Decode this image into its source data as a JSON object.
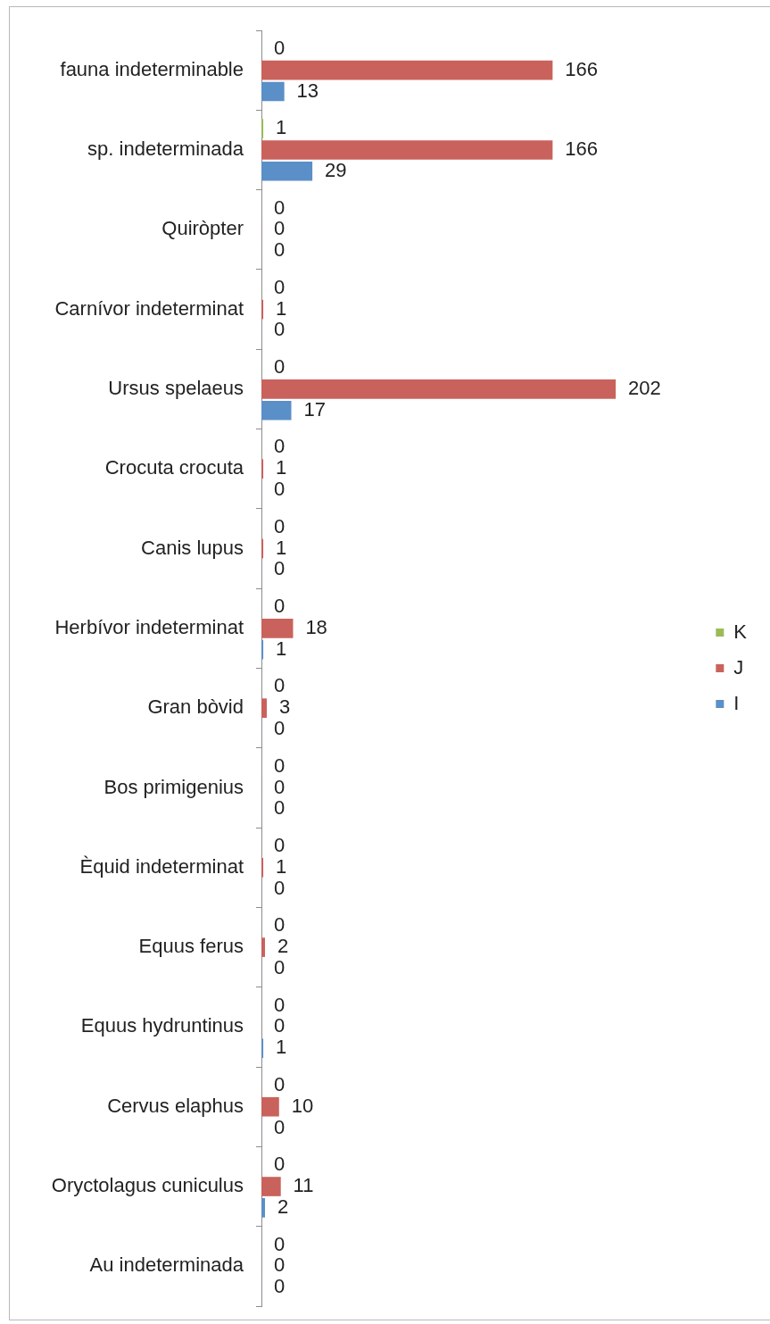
{
  "chart_data": {
    "type": "bar",
    "orientation": "horizontal",
    "categories": [
      "fauna indeterminable",
      "sp. indeterminada",
      "Quiròpter",
      "Carnívor indeterminat",
      "Ursus spelaeus",
      "Crocuta crocuta",
      "Canis lupus",
      "Herbívor indeterminat",
      "Gran bòvid",
      "Bos primigenius",
      "Èquid indeterminat",
      "Equus ferus",
      "Equus hydruntinus",
      "Cervus elaphus",
      "Oryctolagus cuniculus",
      "Au indeterminada"
    ],
    "series": [
      {
        "name": "K",
        "color": "#9bbb59",
        "values": [
          0,
          1,
          0,
          0,
          0,
          0,
          0,
          0,
          0,
          0,
          0,
          0,
          0,
          0,
          0,
          0
        ]
      },
      {
        "name": "J",
        "color": "#c9625c",
        "values": [
          166,
          166,
          0,
          1,
          202,
          1,
          1,
          18,
          3,
          0,
          1,
          2,
          0,
          10,
          11,
          0
        ]
      },
      {
        "name": "I",
        "color": "#5b8fc7",
        "values": [
          13,
          29,
          0,
          0,
          17,
          0,
          0,
          1,
          0,
          0,
          0,
          0,
          1,
          0,
          2,
          0
        ]
      }
    ],
    "data_labels": true,
    "legend": "right"
  }
}
